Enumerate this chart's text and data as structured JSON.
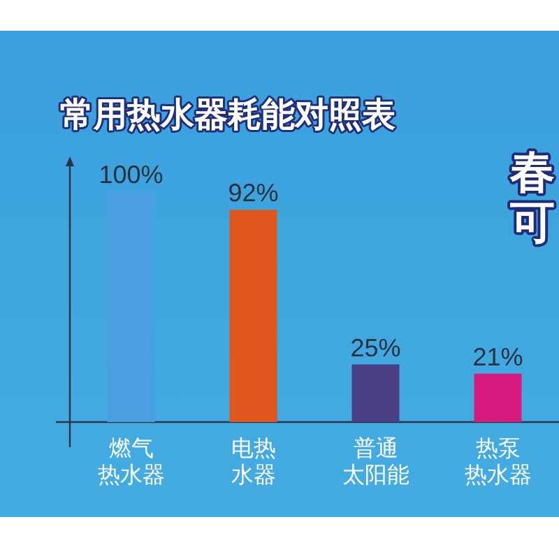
{
  "chart_data": {
    "type": "bar",
    "title": "常用热水器耗能对照表",
    "categories": [
      "燃气热水器",
      "电热水器",
      "普通太阳能",
      "热泵热水器"
    ],
    "values": [
      100,
      92,
      25,
      21
    ],
    "colors": [
      "#4a9fe0",
      "#e0561e",
      "#4a3f85",
      "#d81b7f"
    ],
    "value_labels": [
      "100%",
      "92%",
      "25%",
      "21%"
    ],
    "annotations": [
      "春",
      "可"
    ]
  }
}
